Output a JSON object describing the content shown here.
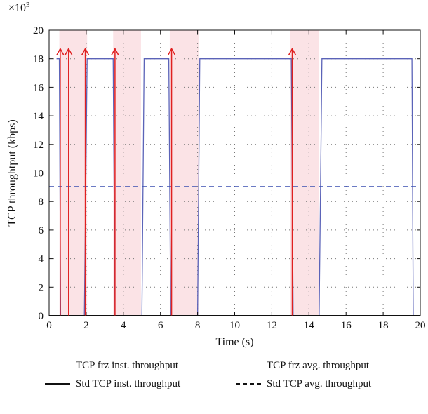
{
  "chart_data": {
    "type": "line",
    "title": "",
    "xlabel": "Time (s)",
    "ylabel": "TCP throughtput (kbps)",
    "y_multiplier_label": "×10",
    "y_multiplier_exp": "3",
    "xlim": [
      0,
      20
    ],
    "ylim": [
      0,
      20
    ],
    "xticks": [
      0,
      2,
      4,
      6,
      8,
      10,
      12,
      14,
      16,
      18,
      20
    ],
    "yticks": [
      0,
      2,
      4,
      6,
      8,
      10,
      12,
      14,
      16,
      18,
      20
    ],
    "grid": true,
    "legend_placement": "bottom",
    "colors": {
      "frz_inst": "#5b63b8",
      "frz_avg": "#3a4fb0",
      "std": "#111111",
      "arrow": "#e02020",
      "shade": "#fbe3e6"
    },
    "series": [
      {
        "name": "TCP frz inst. throughput",
        "style": "solid",
        "x": [
          0.4,
          0.55,
          0.62,
          1.9,
          2.05,
          3.45,
          3.55,
          5.0,
          5.12,
          6.45,
          6.55,
          8.0,
          8.12,
          13.05,
          13.15,
          14.55,
          14.7,
          19.55,
          19.62
        ],
        "y": [
          18,
          18,
          0,
          0,
          18,
          18,
          0,
          0,
          18,
          18,
          0,
          0,
          18,
          18,
          0,
          0,
          18,
          18,
          0
        ]
      },
      {
        "name": "TCP frz avg. throughput",
        "style": "dashed",
        "x": [
          0,
          20
        ],
        "y": [
          9.05,
          9.05
        ]
      },
      {
        "name": "Std TCP inst. throughput",
        "style": "solid",
        "x": [
          0,
          20
        ],
        "y": [
          0,
          0
        ]
      },
      {
        "name": "Std TCP avg. throughput",
        "style": "dashed",
        "x": [
          0,
          20
        ],
        "y": [
          0,
          0
        ]
      }
    ],
    "arrows_x": [
      0.6,
      1.05,
      1.95,
      3.55,
      6.6,
      13.1
    ],
    "shaded_intervals": [
      [
        0.55,
        2.05
      ],
      [
        3.45,
        4.95
      ],
      [
        6.5,
        8.05
      ],
      [
        13.0,
        14.55
      ]
    ]
  }
}
